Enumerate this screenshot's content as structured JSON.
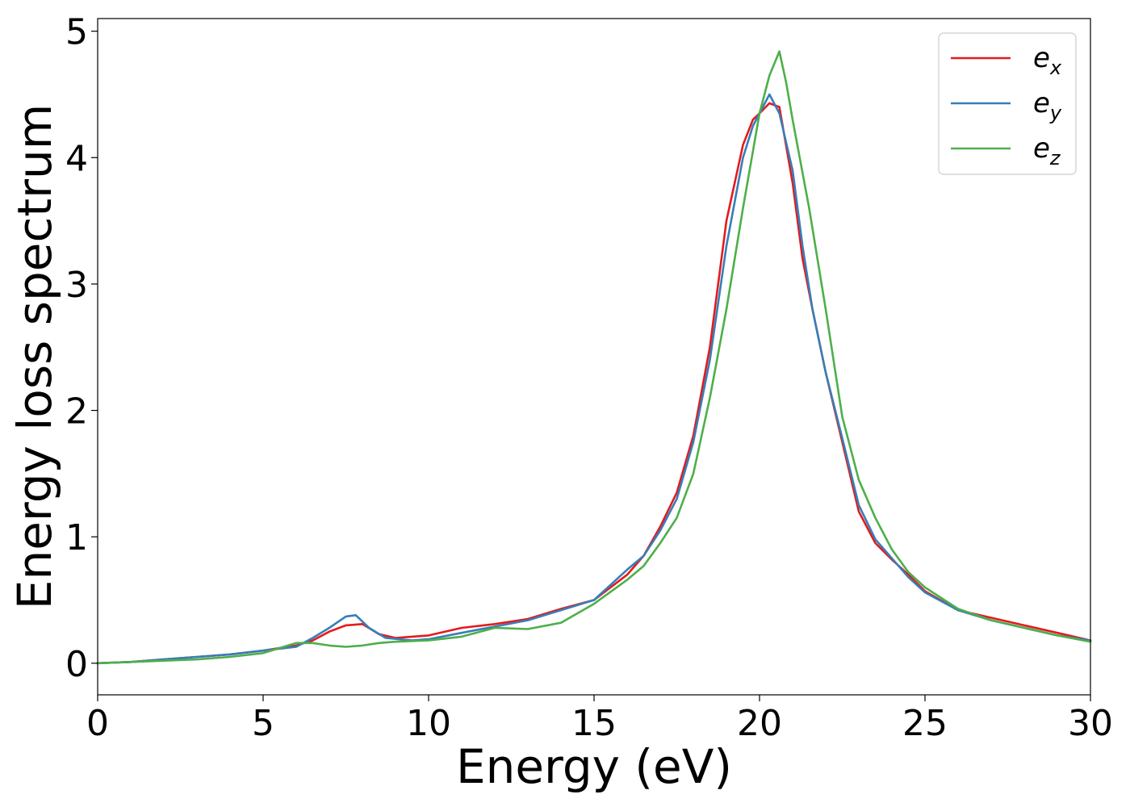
{
  "chart_data": {
    "type": "line",
    "title": "",
    "xlabel": "Energy (eV)",
    "ylabel": "Energy loss spectrum",
    "xlim": [
      0,
      30
    ],
    "ylim": [
      -0.25,
      5.1
    ],
    "xticks": [
      "0",
      "5",
      "10",
      "15",
      "20",
      "25",
      "30"
    ],
    "yticks": [
      "0",
      "1",
      "2",
      "3",
      "4",
      "5"
    ],
    "grid": false,
    "legend_position": "top-right",
    "series": [
      {
        "name": "e",
        "subscript": "x",
        "color": "#e41a1c",
        "x": [
          0,
          1,
          2,
          3,
          4,
          5,
          6,
          6.5,
          7,
          7.5,
          8,
          8.5,
          9,
          10,
          11,
          12,
          13,
          14,
          15,
          16,
          16.5,
          17,
          17.5,
          18,
          18.5,
          19,
          19.5,
          19.8,
          20,
          20.3,
          20.6,
          21,
          21.3,
          21.6,
          22,
          22.5,
          23,
          23.5,
          24,
          24.5,
          25,
          26,
          27,
          28,
          29,
          30
        ],
        "y": [
          0,
          0.01,
          0.03,
          0.05,
          0.07,
          0.1,
          0.14,
          0.18,
          0.25,
          0.3,
          0.31,
          0.23,
          0.2,
          0.22,
          0.28,
          0.31,
          0.35,
          0.43,
          0.5,
          0.7,
          0.85,
          1.08,
          1.35,
          1.8,
          2.5,
          3.5,
          4.1,
          4.3,
          4.35,
          4.43,
          4.4,
          3.8,
          3.2,
          2.8,
          2.3,
          1.75,
          1.2,
          0.95,
          0.82,
          0.7,
          0.57,
          0.42,
          0.36,
          0.3,
          0.24,
          0.18
        ]
      },
      {
        "name": "e",
        "subscript": "y",
        "color": "#377eb8",
        "x": [
          0,
          1,
          2,
          3,
          4,
          5,
          6,
          6.5,
          7,
          7.5,
          7.8,
          8.2,
          8.7,
          9.5,
          10,
          11,
          12,
          13,
          14,
          15,
          16,
          16.5,
          17,
          17.5,
          18,
          18.5,
          19,
          19.5,
          19.8,
          20,
          20.3,
          20.6,
          21,
          21.3,
          21.6,
          22,
          22.5,
          23,
          23.5,
          24,
          24.5,
          25,
          26,
          27,
          28,
          29,
          30
        ],
        "y": [
          0,
          0.01,
          0.03,
          0.05,
          0.07,
          0.1,
          0.13,
          0.2,
          0.28,
          0.37,
          0.38,
          0.28,
          0.2,
          0.18,
          0.19,
          0.24,
          0.29,
          0.34,
          0.42,
          0.5,
          0.74,
          0.85,
          1.05,
          1.3,
          1.75,
          2.4,
          3.3,
          4.0,
          4.25,
          4.35,
          4.5,
          4.35,
          3.9,
          3.3,
          2.8,
          2.3,
          1.78,
          1.25,
          0.98,
          0.83,
          0.68,
          0.56,
          0.42,
          0.34,
          0.28,
          0.22,
          0.18
        ]
      },
      {
        "name": "e",
        "subscript": "z",
        "color": "#4daf4a",
        "x": [
          0,
          1,
          2,
          3,
          4,
          5,
          5.5,
          6,
          6.5,
          7,
          7.5,
          8,
          8.5,
          9,
          10,
          11,
          12,
          13,
          14,
          15,
          16,
          16.5,
          17,
          17.5,
          18,
          18.5,
          19,
          19.5,
          20,
          20.3,
          20.6,
          20.8,
          21,
          21.5,
          22,
          22.5,
          23,
          23.5,
          24,
          24.5,
          25,
          26,
          27,
          28,
          29,
          30
        ],
        "y": [
          0,
          0.01,
          0.02,
          0.03,
          0.05,
          0.08,
          0.12,
          0.16,
          0.16,
          0.14,
          0.13,
          0.14,
          0.16,
          0.17,
          0.18,
          0.21,
          0.28,
          0.27,
          0.32,
          0.47,
          0.66,
          0.77,
          0.95,
          1.15,
          1.5,
          2.1,
          2.8,
          3.6,
          4.35,
          4.65,
          4.84,
          4.6,
          4.3,
          3.6,
          2.8,
          1.95,
          1.45,
          1.15,
          0.9,
          0.72,
          0.6,
          0.43,
          0.34,
          0.28,
          0.22,
          0.17
        ]
      }
    ]
  }
}
